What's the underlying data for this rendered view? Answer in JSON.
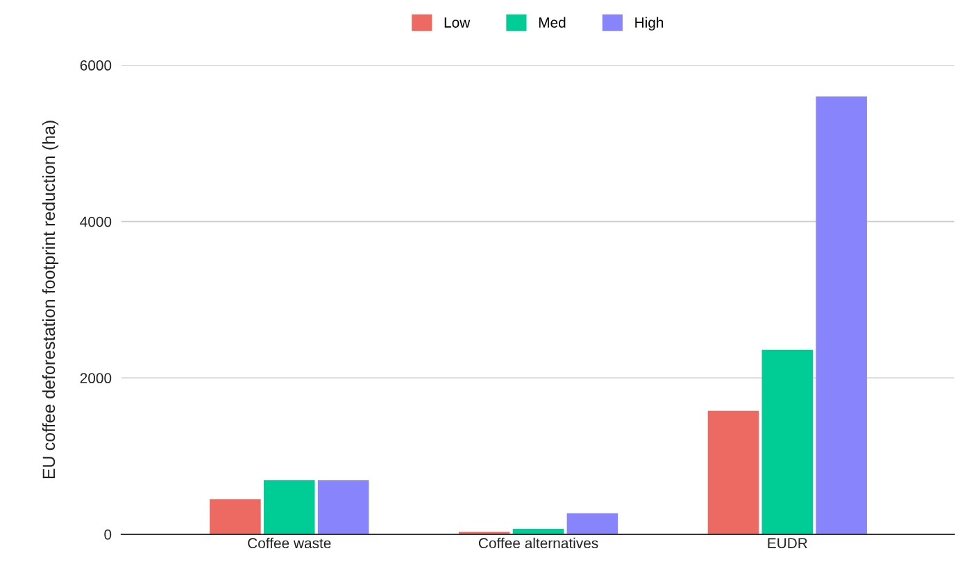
{
  "chart_data": {
    "type": "bar",
    "ylabel": "EU coffee deforestation footprint reduction (ha)",
    "categories": [
      "Coffee waste",
      "Coffee alternatives",
      "EUDR"
    ],
    "series": [
      {
        "name": "Low",
        "color": "#ec6a62",
        "values": [
          450,
          30,
          1580
        ]
      },
      {
        "name": "Med",
        "color": "#00cc96",
        "values": [
          690,
          70,
          2360
        ]
      },
      {
        "name": "High",
        "color": "#8884fc",
        "values": [
          690,
          270,
          5600
        ]
      }
    ],
    "ylim": [
      0,
      6000
    ],
    "yticks": [
      0,
      2000,
      4000,
      6000
    ],
    "grid": "y",
    "legend": "top"
  }
}
